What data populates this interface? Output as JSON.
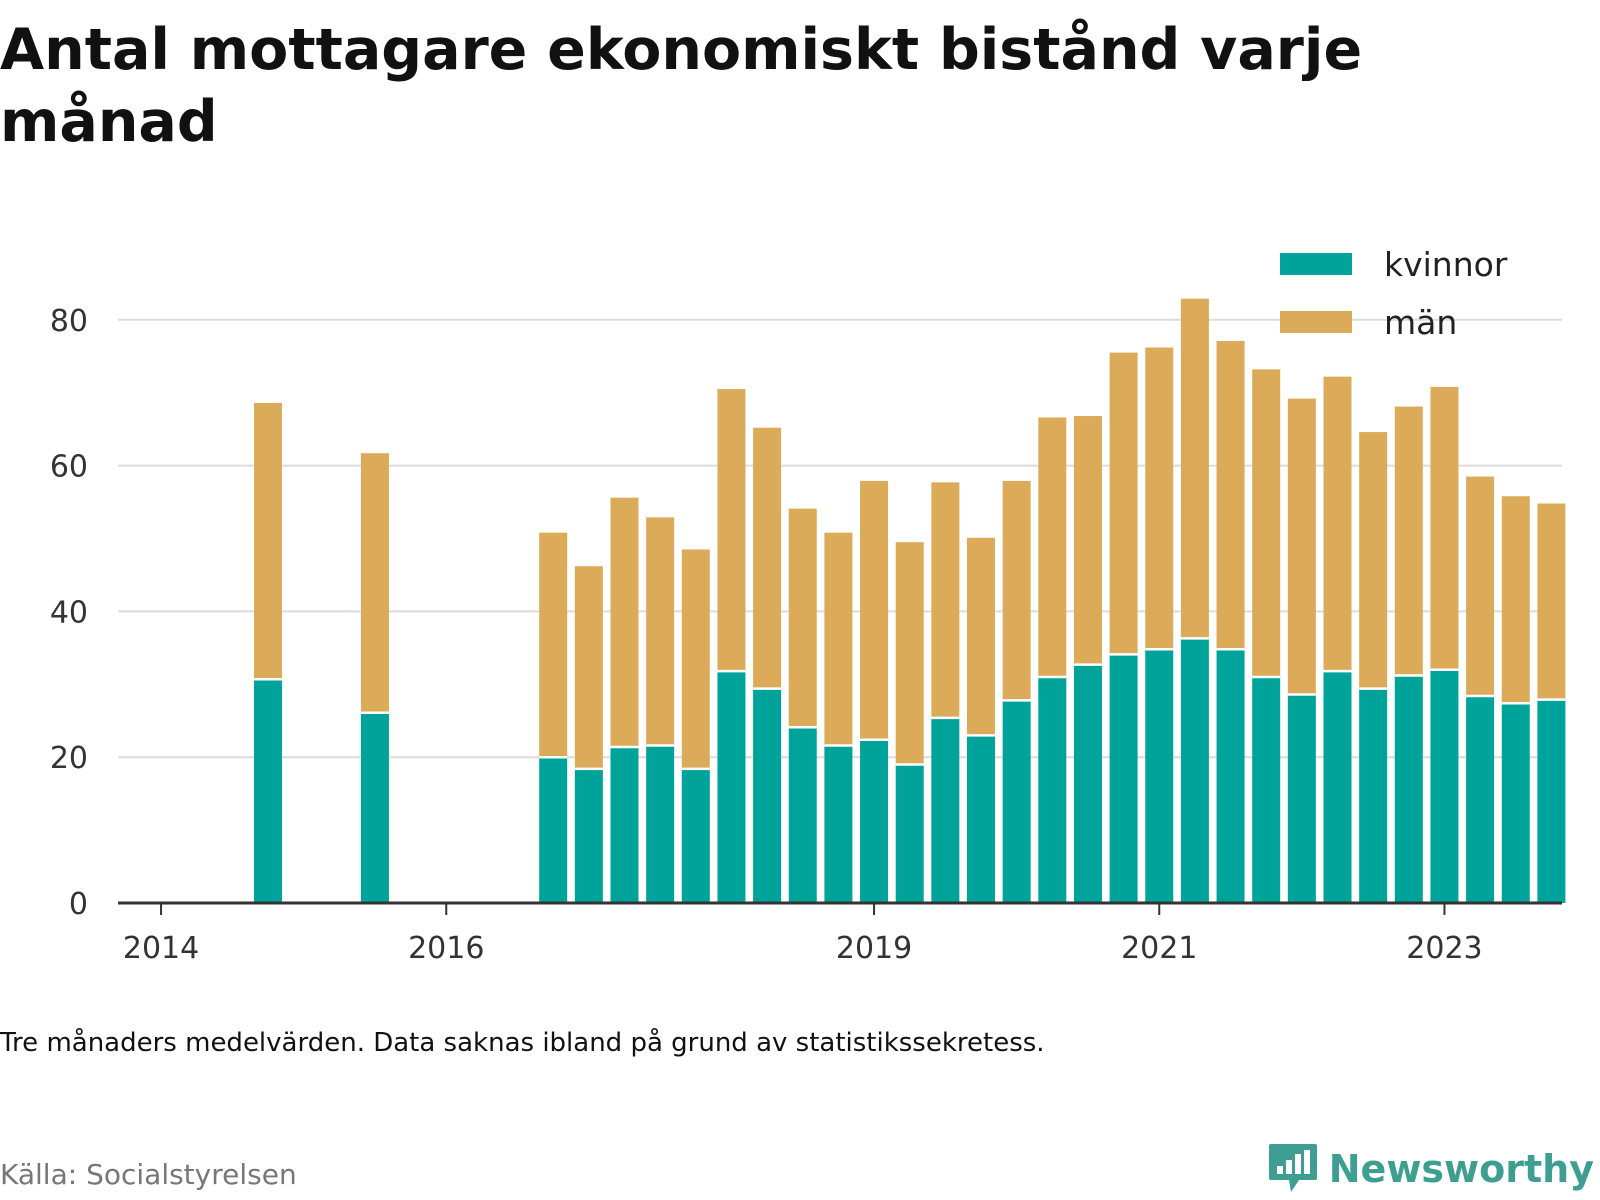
{
  "title": "Antal mottagare ekonomiskt bistånd varje månad",
  "note": "Tre månaders medelvärden. Data saknas ibland på grund av statistikssekretess.",
  "source": "Källa: Socialstyrelsen",
  "brand": {
    "name": "Newsworthy",
    "color": "#3d9e91",
    "icon": "bar-chart-speech-bubble-icon"
  },
  "chart_data": {
    "type": "bar",
    "stacked": true,
    "x_tick_labels": [
      "2014",
      "2016",
      "2019",
      "2021",
      "2023"
    ],
    "y_ticks": [
      0,
      20,
      40,
      60,
      80
    ],
    "ylim": [
      0,
      90
    ],
    "grid": true,
    "legend_position": "top-right",
    "categories": [
      "2014 Q4",
      "2015 Q3",
      "2016 Q2",
      "2016 Q3",
      "2016 Q4",
      "2017 Q1",
      "2017 Q2",
      "2017 Q3",
      "2017 Q4",
      "2018 Q1",
      "2018 Q2",
      "2018 Q3",
      "2018 Q4",
      "2019 Q1",
      "2019 Q2",
      "2019 Q3",
      "2019 Q4",
      "2020 Q1",
      "2020 Q2",
      "2020 Q3",
      "2020 Q4",
      "2021 Q1",
      "2021 Q2",
      "2021 Q3",
      "2021 Q4",
      "2022 Q1",
      "2022 Q2",
      "2022 Q3",
      "2022 Q4",
      "2023 Q1",
      "2023 Q2",
      "2023 Q3",
      "2023 Q4"
    ],
    "series": [
      {
        "name": "kvinnor",
        "color": "#00a39a",
        "values": [
          30.7,
          26.1,
          null,
          null,
          20.0,
          18.4,
          21.4,
          21.6,
          18.4,
          31.8,
          29.4,
          24.1,
          21.6,
          22.4,
          19.0,
          25.4,
          23.0,
          27.8,
          31.0,
          32.7,
          34.1,
          34.8,
          36.3,
          34.8,
          31.0,
          28.6,
          31.8,
          29.4,
          31.2,
          32.0,
          28.4,
          27.4,
          27.9
        ]
      },
      {
        "name": "män",
        "color": "#dbab5a",
        "values": [
          37.9,
          35.6,
          null,
          null,
          30.8,
          27.8,
          34.2,
          31.3,
          30.1,
          38.7,
          35.8,
          30.0,
          29.2,
          35.5,
          30.5,
          32.3,
          27.1,
          30.1,
          35.6,
          34.1,
          41.4,
          41.4,
          46.6,
          42.3,
          42.2,
          40.6,
          40.4,
          35.2,
          36.9,
          38.8,
          30.1,
          28.4,
          26.9
        ]
      }
    ]
  }
}
